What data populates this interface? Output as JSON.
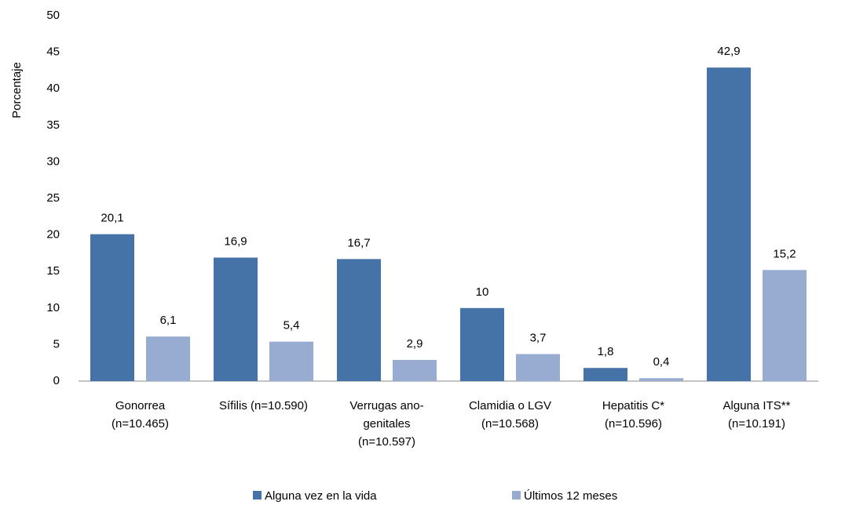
{
  "chart_data": {
    "type": "bar",
    "y_label": "Porcentaje",
    "categories": [
      "Gonorrea\n(n=10.465)",
      "Sífilis (n=10.590)",
      "Verrugas ano-\ngenitales\n(n=10.597)",
      "Clamidia o LGV\n(n=10.568)",
      "Hepatitis C*\n(n=10.596)",
      "Alguna ITS**\n(n=10.191)"
    ],
    "series": [
      {
        "name": "Alguna vez en la vida",
        "color": "#4573a7",
        "values": [
          20.1,
          16.9,
          16.7,
          10,
          1.8,
          42.9
        ],
        "value_labels": [
          "20,1",
          "16,9",
          "16,7",
          "10",
          "1,8",
          "42,9"
        ]
      },
      {
        "name": "Últimos 12 meses",
        "color": "#98abd1",
        "values": [
          6.1,
          5.4,
          2.9,
          3.7,
          0.4,
          15.2
        ],
        "value_labels": [
          "6,1",
          "5,4",
          "2,9",
          "3,7",
          "0,4",
          "15,2"
        ]
      }
    ],
    "ylim": [
      0,
      50
    ],
    "yticks": [
      0,
      5,
      10,
      15,
      20,
      25,
      30,
      35,
      40,
      45,
      50
    ],
    "grid": false,
    "legend": "bottom"
  }
}
